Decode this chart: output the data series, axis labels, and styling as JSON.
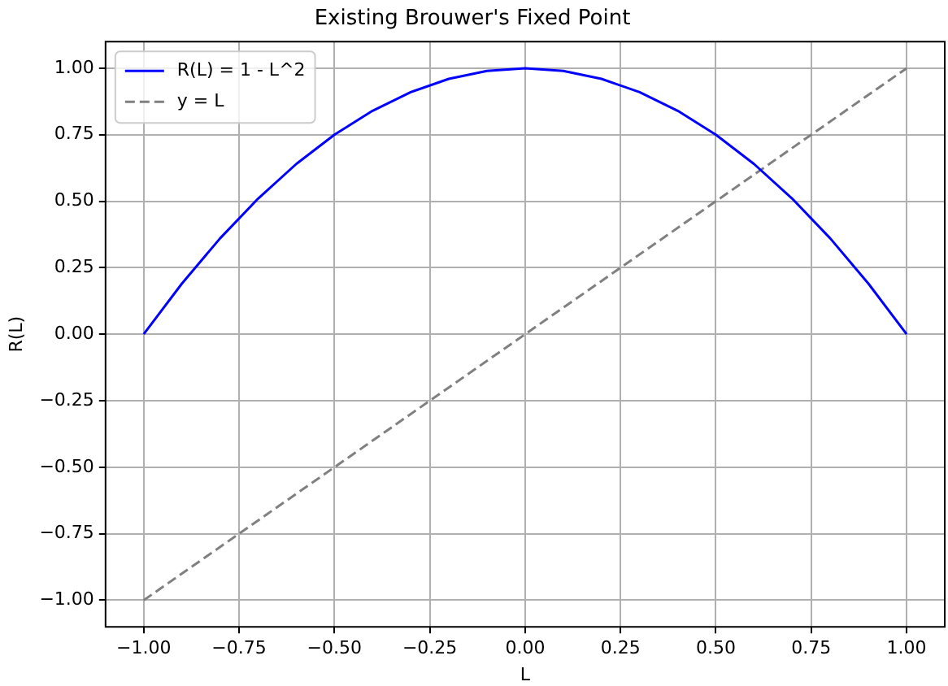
{
  "chart_data": {
    "type": "line",
    "title": "Existing Brouwer's Fixed Point",
    "xlabel": "L",
    "ylabel": "R(L)",
    "series": [
      {
        "name": "R(L) = 1 - L^2",
        "color": "#0000ff",
        "line_style": "solid",
        "x": [
          -1,
          -0.9,
          -0.8,
          -0.7,
          -0.6,
          -0.5,
          -0.4,
          -0.3,
          -0.2,
          -0.1,
          0,
          0.1,
          0.2,
          0.3,
          0.4,
          0.5,
          0.6,
          0.7,
          0.8,
          0.9,
          1
        ],
        "values": [
          0,
          0.19,
          0.36,
          0.51,
          0.64,
          0.75,
          0.84,
          0.91,
          0.96,
          0.99,
          1,
          0.99,
          0.96,
          0.91,
          0.84,
          0.75,
          0.64,
          0.51,
          0.36,
          0.19,
          0
        ]
      },
      {
        "name": "y = L",
        "color": "#808080",
        "line_style": "dashed",
        "x": [
          -1,
          1
        ],
        "values": [
          -1,
          1
        ]
      }
    ],
    "xlim": [
      -1.1,
      1.1
    ],
    "xticks": [
      {
        "value": -1,
        "label": "−1.00"
      },
      {
        "value": -0.75,
        "label": "−0.75"
      },
      {
        "value": -0.5,
        "label": "−0.50"
      },
      {
        "value": -0.25,
        "label": "−0.25"
      },
      {
        "value": 0,
        "label": "0.00"
      },
      {
        "value": 0.25,
        "label": "0.25"
      },
      {
        "value": 0.5,
        "label": "0.50"
      },
      {
        "value": 0.75,
        "label": "0.75"
      },
      {
        "value": 1,
        "label": "1.00"
      }
    ],
    "ylim": [
      -1.1,
      1.1
    ],
    "yticks": [
      {
        "value": -1,
        "label": "−1.00"
      },
      {
        "value": -0.75,
        "label": "−0.75"
      },
      {
        "value": -0.5,
        "label": "−0.50"
      },
      {
        "value": -0.25,
        "label": "−0.25"
      },
      {
        "value": 0,
        "label": "0.00"
      },
      {
        "value": 0.25,
        "label": "0.25"
      },
      {
        "value": 0.5,
        "label": "0.50"
      },
      {
        "value": 0.75,
        "label": "0.75"
      },
      {
        "value": 1,
        "label": "1.00"
      }
    ],
    "grid": true,
    "legend": "top left",
    "marker": "none"
  }
}
